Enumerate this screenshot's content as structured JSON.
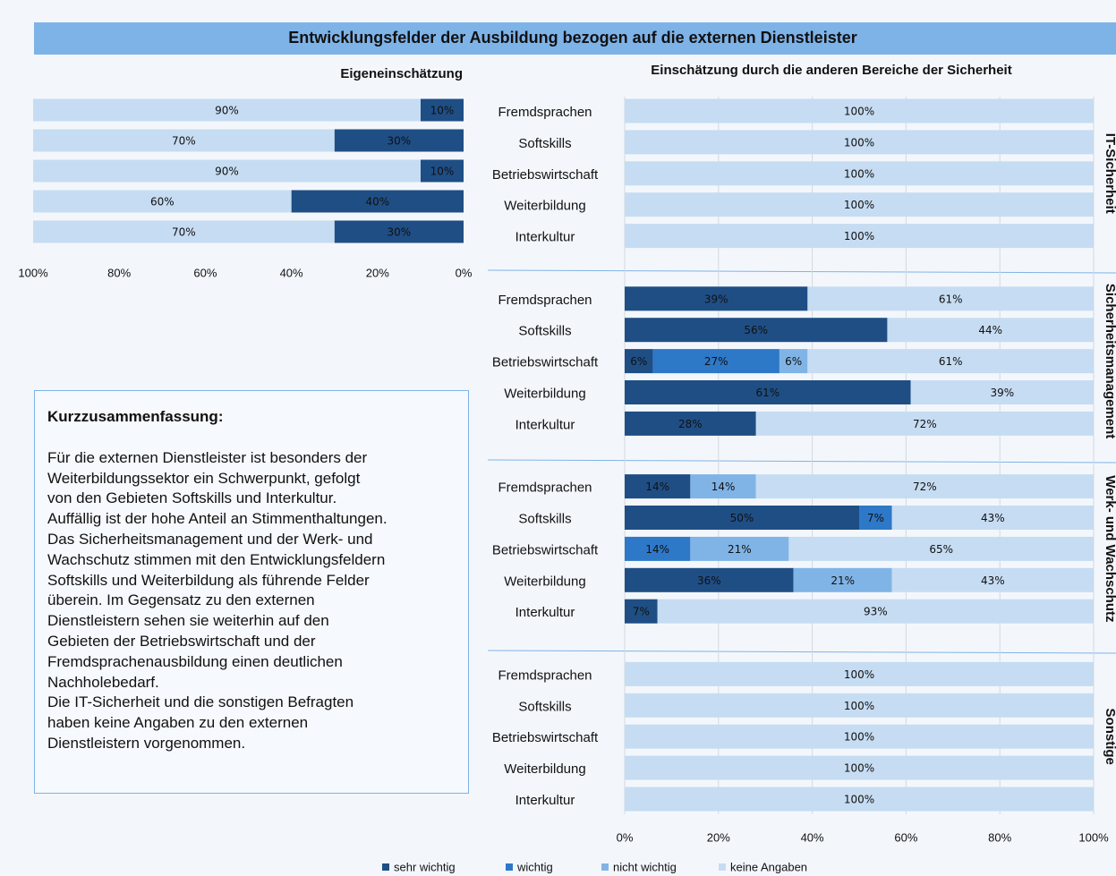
{
  "header": {
    "title": "Entwicklungsfelder der Ausbildung bezogen auf die externen Dienstleister"
  },
  "summary": {
    "heading": "Kurzzusammenfassung:",
    "lines": [
      "Für die externen Dienstleister ist besonders der",
      "Weiterbildungssektor ein Schwerpunkt, gefolgt",
      "von den Gebieten Softskills und Interkultur.",
      "Auffällig ist der hohe Anteil an Stimmenthaltungen.",
      "Das Sicherheitsmanagement und der Werk- und",
      "Wachschutz stimmen mit den Entwicklungsfeldern",
      "Softskills und Weiterbildung als führende Felder",
      "überein. Im Gegensatz zu den externen",
      "Dienstleistern sehen sie weiterhin auf den",
      "Gebieten der Betriebswirtschaft und der",
      "Fremdsprachenausbildung einen deutlichen",
      "Nachholebedarf.",
      "Die IT-Sicherheit und die sonstigen Befragten",
      "haben keine Angaben zu den externen",
      "Dienstleistern vorgenommen."
    ]
  },
  "chart_data": [
    {
      "type": "bar",
      "title": "Eigeneinschätzung",
      "xlim": [
        100,
        0
      ],
      "xticks": [
        {
          "value": 100,
          "label": "100%"
        },
        {
          "value": 80,
          "label": "80%"
        },
        {
          "value": 60,
          "label": "60%"
        },
        {
          "value": 40,
          "label": "40%"
        },
        {
          "value": 20,
          "label": "20%"
        },
        {
          "value": 0,
          "label": "0%"
        }
      ],
      "series": [
        {
          "color": "#1f4e85",
          "values": [
            10,
            30,
            10,
            40,
            30
          ],
          "value_labels": [
            "10%",
            "30%",
            "10%",
            "40%",
            "30%"
          ]
        },
        {
          "color": "#c6dcf2",
          "values": [
            90,
            70,
            90,
            60,
            70
          ],
          "value_labels": [
            "90%",
            "70%",
            "90%",
            "60%",
            "70%"
          ]
        }
      ]
    },
    {
      "type": "bar",
      "title": "Einschätzung durch die anderen Bereiche der Sicherheit",
      "xlim": [
        0,
        100
      ],
      "xticks": [
        {
          "value": 0,
          "label": "0%"
        },
        {
          "value": 20,
          "label": "20%"
        },
        {
          "value": 40,
          "label": "40%"
        },
        {
          "value": 60,
          "label": "60%"
        },
        {
          "value": 80,
          "label": "80%"
        },
        {
          "value": 100,
          "label": "100%"
        }
      ],
      "grid": true,
      "legend": [
        {
          "name": "sehr wichtig",
          "color": "#1f4e85"
        },
        {
          "name": "wichtig",
          "color": "#2e78c8"
        },
        {
          "name": "nicht wichtig",
          "color": "#80b4e6"
        },
        {
          "name": "keine Angaben",
          "color": "#c6dcf2"
        }
      ],
      "groups": [
        {
          "name": "IT-Sicherheit",
          "categories": [
            "Fremdsprachen",
            "Softskills",
            "Betriebswirtschaft",
            "Weiterbildung",
            "Interkultur"
          ],
          "series": [
            {
              "color": "#1f4e85",
              "values": [
                null,
                null,
                null,
                null,
                null
              ],
              "value_labels": [
                null,
                null,
                null,
                null,
                null
              ]
            },
            {
              "color": "#2e78c8",
              "values": [
                null,
                null,
                null,
                null,
                null
              ],
              "value_labels": [
                null,
                null,
                null,
                null,
                null
              ]
            },
            {
              "color": "#80b4e6",
              "values": [
                null,
                null,
                null,
                null,
                null
              ],
              "value_labels": [
                null,
                null,
                null,
                null,
                null
              ]
            },
            {
              "color": "#c6dcf2",
              "values": [
                100,
                100,
                100,
                100,
                100
              ],
              "value_labels": [
                "100%",
                "100%",
                "100%",
                "100%",
                "100%"
              ]
            }
          ]
        },
        {
          "name": "Sicherheitsmanagement",
          "categories": [
            "Fremdsprachen",
            "Softskills",
            "Betriebswirtschaft",
            "Weiterbildung",
            "Interkultur"
          ],
          "series": [
            {
              "color": "#1f4e85",
              "values": [
                39,
                56,
                6,
                61,
                28
              ],
              "value_labels": [
                "39%",
                "56%",
                "6%",
                "61%",
                "28%"
              ]
            },
            {
              "color": "#2e78c8",
              "values": [
                null,
                null,
                27,
                null,
                null
              ],
              "value_labels": [
                null,
                null,
                "27%",
                null,
                null
              ]
            },
            {
              "color": "#80b4e6",
              "values": [
                null,
                null,
                6,
                null,
                null
              ],
              "value_labels": [
                null,
                null,
                "6%",
                null,
                null
              ]
            },
            {
              "color": "#c6dcf2",
              "values": [
                61,
                44,
                61,
                39,
                72
              ],
              "value_labels": [
                "61%",
                "44%",
                "61%",
                "39%",
                "72%"
              ]
            }
          ]
        },
        {
          "name": "Werk- und Wachschutz",
          "categories": [
            "Fremdsprachen",
            "Softskills",
            "Betriebswirtschaft",
            "Weiterbildung",
            "Interkultur"
          ],
          "series": [
            {
              "color": "#1f4e85",
              "values": [
                14,
                50,
                null,
                36,
                7
              ],
              "value_labels": [
                "14%",
                "50%",
                null,
                "36%",
                "7%"
              ]
            },
            {
              "color": "#2e78c8",
              "values": [
                null,
                7,
                14,
                null,
                null
              ],
              "value_labels": [
                null,
                "7%",
                "14%",
                null,
                null
              ]
            },
            {
              "color": "#80b4e6",
              "values": [
                14,
                null,
                21,
                21,
                null
              ],
              "value_labels": [
                "14%",
                null,
                "21%",
                "21%",
                null
              ]
            },
            {
              "color": "#c6dcf2",
              "values": [
                72,
                43,
                65,
                43,
                93
              ],
              "value_labels": [
                "72%",
                "43%",
                "65%",
                "43%",
                "93%"
              ]
            }
          ]
        },
        {
          "name": "Sonstige",
          "categories": [
            "Fremdsprachen",
            "Softskills",
            "Betriebswirtschaft",
            "Weiterbildung",
            "Interkultur"
          ],
          "series": [
            {
              "color": "#1f4e85",
              "values": [
                null,
                null,
                null,
                null,
                null
              ],
              "value_labels": [
                null,
                null,
                null,
                null,
                null
              ]
            },
            {
              "color": "#2e78c8",
              "values": [
                null,
                null,
                null,
                null,
                null
              ],
              "value_labels": [
                null,
                null,
                null,
                null,
                null
              ]
            },
            {
              "color": "#80b4e6",
              "values": [
                null,
                null,
                null,
                null,
                null
              ],
              "value_labels": [
                null,
                null,
                null,
                null,
                null
              ]
            },
            {
              "color": "#c6dcf2",
              "values": [
                100,
                100,
                100,
                100,
                100
              ],
              "value_labels": [
                "100%",
                "100%",
                "100%",
                "100%",
                "100%"
              ]
            }
          ]
        }
      ]
    }
  ]
}
